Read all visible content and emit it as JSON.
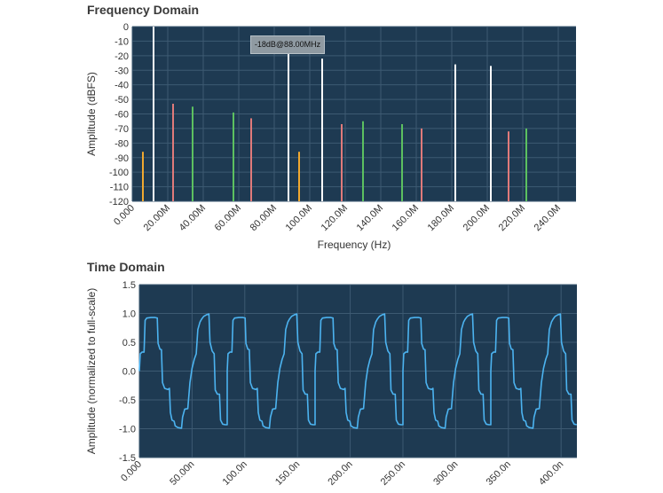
{
  "freq_panel": {
    "title": "Frequency Domain"
  },
  "time_panel": {
    "title": "Time Domain"
  },
  "tooltip": {
    "text": "-18dB@88.00MHz"
  },
  "chart_data": [
    {
      "type": "bar",
      "title": "Frequency Domain",
      "xlabel": "Frequency (Hz)",
      "ylabel": "Amplitude (dBFS)",
      "xlim": [
        0,
        250
      ],
      "ylim": [
        -120,
        0
      ],
      "x_ticks": [
        0,
        20,
        40,
        60,
        80,
        100,
        120,
        140,
        160,
        180,
        200,
        220,
        240
      ],
      "x_tick_labels": [
        "0.000",
        "20.00M",
        "40.00M",
        "60.00M",
        "80.00M",
        "100.0M",
        "120.0M",
        "140.0M",
        "160.0M",
        "180.0M",
        "200.0M",
        "220.0M",
        "240.0M"
      ],
      "y_ticks": [
        0,
        -10,
        -20,
        -30,
        -40,
        -50,
        -60,
        -70,
        -80,
        -90,
        -100,
        -110,
        -120
      ],
      "y_tick_labels": [
        "0",
        "-10",
        "-20",
        "-30",
        "-40",
        "-50",
        "-60",
        "-70",
        "-80",
        "-90",
        "-100",
        "-110",
        "-120"
      ],
      "grid": true,
      "background": "#1e3a52",
      "bars": [
        {
          "x": 6,
          "y": -86,
          "color": "#f0a830"
        },
        {
          "x": 12,
          "y": 0,
          "color": "#ffffff"
        },
        {
          "x": 23,
          "y": -53,
          "color": "#e07a7a"
        },
        {
          "x": 34,
          "y": -55,
          "color": "#5cc060"
        },
        {
          "x": 57,
          "y": -59,
          "color": "#5cc060"
        },
        {
          "x": 67,
          "y": -63,
          "color": "#e07a7a"
        },
        {
          "x": 88,
          "y": -18,
          "color": "#ffffff"
        },
        {
          "x": 94,
          "y": -86,
          "color": "#f0a830"
        },
        {
          "x": 107,
          "y": -22,
          "color": "#ffffff"
        },
        {
          "x": 118,
          "y": -67,
          "color": "#e07a7a"
        },
        {
          "x": 130,
          "y": -65,
          "color": "#5cc060"
        },
        {
          "x": 152,
          "y": -67,
          "color": "#5cc060"
        },
        {
          "x": 163,
          "y": -70,
          "color": "#e07a7a"
        },
        {
          "x": 182,
          "y": -26,
          "color": "#ffffff"
        },
        {
          "x": 202,
          "y": -27,
          "color": "#ffffff"
        },
        {
          "x": 212,
          "y": -72,
          "color": "#e07a7a"
        },
        {
          "x": 222,
          "y": -70,
          "color": "#5cc060"
        }
      ]
    },
    {
      "type": "line",
      "title": "Time Domain",
      "xlabel": "",
      "ylabel": "Amplitude (normalized to full-scale)",
      "xlim": [
        0,
        415
      ],
      "ylim": [
        -1.5,
        1.5
      ],
      "x_ticks": [
        0,
        50,
        100,
        150,
        200,
        250,
        300,
        350,
        400
      ],
      "x_tick_labels": [
        "0.000",
        "50.00n",
        "100.0n",
        "150.0n",
        "200.0n",
        "250.0n",
        "300.0n",
        "350.0n",
        "400.0n"
      ],
      "y_ticks": [
        1.5,
        1.0,
        0.5,
        0.0,
        -0.5,
        -1.0,
        -1.5
      ],
      "y_tick_labels": [
        "1.5",
        "1.0",
        "0.5",
        "0.0",
        "-0.5",
        "-1.0",
        "-1.5"
      ],
      "grid": true,
      "background": "#1e3a52",
      "line_color": "#4cb3f0",
      "period": 83.333,
      "period_samples": [
        [
          0.0,
          0.0
        ],
        [
          0.8,
          0.3
        ],
        [
          2.5,
          0.33
        ],
        [
          4.5,
          0.33
        ],
        [
          5.5,
          0.88
        ],
        [
          7.0,
          0.92
        ],
        [
          11.0,
          0.93
        ],
        [
          15.0,
          0.93
        ],
        [
          17.0,
          0.92
        ],
        [
          17.8,
          0.48
        ],
        [
          19.5,
          0.38
        ],
        [
          21.0,
          0.37
        ],
        [
          22.0,
          -0.2
        ],
        [
          24.0,
          -0.3
        ],
        [
          27.0,
          -0.32
        ],
        [
          28.5,
          -0.3
        ],
        [
          29.5,
          -0.72
        ],
        [
          31.0,
          -0.85
        ],
        [
          33.0,
          -0.87
        ],
        [
          34.0,
          -0.95
        ],
        [
          36.5,
          -0.98
        ],
        [
          40.0,
          -0.99
        ],
        [
          41.0,
          -0.8
        ],
        [
          43.0,
          -0.66
        ],
        [
          46.0,
          -0.65
        ],
        [
          48.0,
          -0.2
        ],
        [
          50.0,
          0.05
        ],
        [
          52.0,
          0.2
        ],
        [
          54.0,
          0.3
        ],
        [
          55.5,
          0.72
        ],
        [
          57.5,
          0.85
        ],
        [
          59.0,
          0.9
        ],
        [
          61.0,
          0.95
        ],
        [
          64.0,
          0.98
        ],
        [
          66.0,
          0.99
        ],
        [
          67.0,
          0.5
        ],
        [
          69.0,
          0.35
        ],
        [
          71.0,
          0.3
        ],
        [
          72.0,
          -0.33
        ],
        [
          74.0,
          -0.4
        ],
        [
          76.0,
          -0.4
        ],
        [
          77.0,
          -0.85
        ],
        [
          79.0,
          -0.92
        ],
        [
          81.5,
          -0.93
        ],
        [
          83.333,
          -0.93
        ]
      ]
    }
  ]
}
